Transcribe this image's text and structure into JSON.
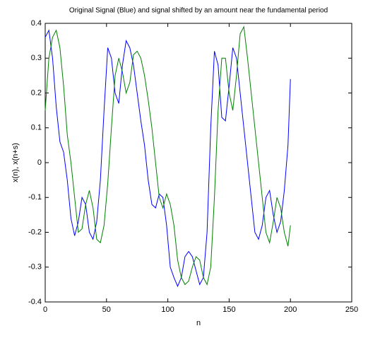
{
  "chart_data": {
    "type": "line",
    "title": "Original Signal (Blue) and signal shifted by an amount near the fundamental period",
    "x_label": "n",
    "y_label": "x(n), x(n+s)",
    "x": [
      0,
      3,
      6,
      9,
      12,
      15,
      18,
      21,
      24,
      27,
      30,
      33,
      36,
      39,
      42,
      45,
      48,
      51,
      54,
      57,
      60,
      63,
      66,
      69,
      72,
      75,
      78,
      81,
      84,
      87,
      90,
      93,
      96,
      99,
      102,
      105,
      108,
      111,
      114,
      117,
      120,
      123,
      126,
      129,
      132,
      135,
      138,
      141,
      144,
      147,
      150,
      153,
      156,
      159,
      162,
      165,
      168,
      171,
      174,
      177,
      180,
      183,
      186,
      189,
      192,
      195,
      198,
      200
    ],
    "series": [
      {
        "color": "#0000ff",
        "values": [
          0.36,
          0.38,
          0.3,
          0.16,
          0.06,
          0.03,
          -0.05,
          -0.16,
          -0.21,
          -0.17,
          -0.1,
          -0.12,
          -0.2,
          -0.22,
          -0.17,
          -0.05,
          0.15,
          0.33,
          0.3,
          0.2,
          0.17,
          0.28,
          0.35,
          0.33,
          0.28,
          0.2,
          0.12,
          0.05,
          -0.05,
          -0.12,
          -0.13,
          -0.09,
          -0.1,
          -0.18,
          -0.3,
          -0.33,
          -0.355,
          -0.33,
          -0.27,
          -0.255,
          -0.27,
          -0.31,
          -0.35,
          -0.33,
          -0.2,
          0.1,
          0.32,
          0.28,
          0.13,
          0.12,
          0.22,
          0.33,
          0.3,
          0.2,
          0.1,
          0.0,
          -0.1,
          -0.2,
          -0.22,
          -0.18,
          -0.1,
          -0.08,
          -0.15,
          -0.2,
          -0.17,
          -0.08,
          0.05,
          0.24
        ]
      },
      {
        "color": "#008000",
        "values": [
          0.15,
          0.3,
          0.36,
          0.38,
          0.33,
          0.22,
          0.08,
          0.0,
          -0.1,
          -0.2,
          -0.19,
          -0.12,
          -0.08,
          -0.13,
          -0.22,
          -0.23,
          -0.18,
          -0.06,
          0.1,
          0.25,
          0.3,
          0.26,
          0.2,
          0.23,
          0.31,
          0.32,
          0.3,
          0.25,
          0.18,
          0.1,
          0.0,
          -0.1,
          -0.13,
          -0.09,
          -0.12,
          -0.18,
          -0.28,
          -0.33,
          -0.35,
          -0.34,
          -0.3,
          -0.27,
          -0.28,
          -0.33,
          -0.35,
          -0.3,
          -0.1,
          0.15,
          0.3,
          0.3,
          0.2,
          0.15,
          0.25,
          0.37,
          0.39,
          0.3,
          0.2,
          0.1,
          0.0,
          -0.1,
          -0.2,
          -0.23,
          -0.17,
          -0.1,
          -0.13,
          -0.2,
          -0.24,
          -0.18
        ]
      }
    ],
    "xlim": [
      0,
      250
    ],
    "xticks": [
      0,
      50,
      100,
      150,
      200,
      250
    ],
    "ylim": [
      -0.4,
      0.4
    ],
    "yticks": [
      -0.4,
      -0.3,
      -0.2,
      -0.1,
      0,
      0.1,
      0.2,
      0.3,
      0.4
    ]
  }
}
